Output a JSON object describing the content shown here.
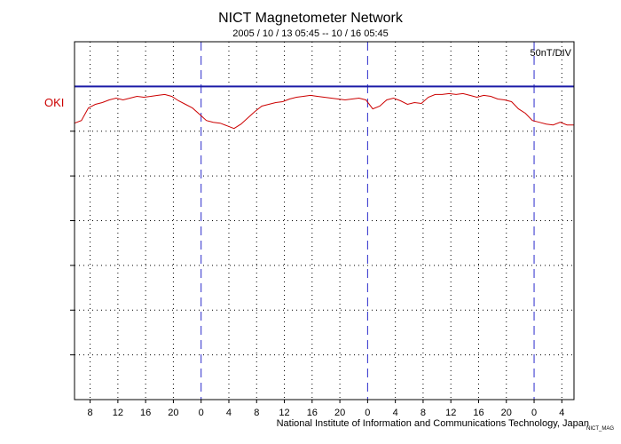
{
  "header": {
    "title": "NICT Magnetometer Network",
    "date_range": "2005 / 10 / 13   05:45 -- 10 / 16   05:45"
  },
  "scale_label": "50nT/DIV",
  "station_label": "OKI",
  "credit": "National Institute of Information and Communications Technology, Japan",
  "credit_small": "NICT_MAG",
  "colors": {
    "baseline": "#1a1aa6",
    "trace": "#cc0000",
    "day_divider": "#2a2acc",
    "grid": "#000000"
  },
  "chart_data": {
    "type": "line",
    "title": "NICT Magnetometer Network",
    "subtitle": "2005 / 10 / 13   05:45 -- 10 / 16   05:45",
    "xlabel": "",
    "ylabel": "",
    "x_unit": "hours from 2005/10/13 05:45",
    "xlim": [
      0,
      72
    ],
    "ylim": [
      -350,
      50
    ],
    "y_grid_step": 50,
    "tick_labels": [
      "8",
      "12",
      "16",
      "20",
      "0",
      "4",
      "8",
      "12",
      "16",
      "20",
      "0",
      "4",
      "8",
      "12",
      "16",
      "20",
      "0",
      "4"
    ],
    "tick_positions": [
      2.25,
      6.25,
      10.25,
      14.25,
      18.25,
      22.25,
      26.25,
      30.25,
      34.25,
      38.25,
      42.25,
      46.25,
      50.25,
      54.25,
      58.25,
      62.25,
      66.25,
      70.25
    ],
    "day_boundaries": [
      18.25,
      42.25,
      66.25
    ],
    "baseline": {
      "name": "OKI",
      "value": 0
    },
    "series": [
      {
        "name": "OKI",
        "x": [
          0,
          1,
          2,
          3,
          4,
          5,
          6,
          7,
          8,
          9,
          10,
          11,
          12,
          13,
          14,
          15,
          16,
          17,
          18,
          19,
          20,
          21,
          22,
          23,
          24,
          25,
          26,
          27,
          28,
          29,
          30,
          31,
          32,
          33,
          34,
          35,
          36,
          37,
          38,
          39,
          40,
          41,
          42,
          43,
          44,
          45,
          46,
          47,
          48,
          49,
          50,
          51,
          52,
          53,
          54,
          55,
          56,
          57,
          58,
          59,
          60,
          61,
          62,
          63,
          64,
          65,
          66,
          67,
          68,
          69,
          70,
          71,
          72
        ],
        "y": [
          -41,
          -38,
          -24,
          -20,
          -18,
          -15,
          -13,
          -15,
          -13,
          -11,
          -12,
          -11,
          -10,
          -9,
          -11,
          -16,
          -20,
          -24,
          -31,
          -38,
          -40,
          -41,
          -44,
          -47,
          -42,
          -35,
          -28,
          -22,
          -20,
          -18,
          -17,
          -14,
          -12,
          -11,
          -10,
          -11,
          -12,
          -13,
          -14,
          -15,
          -14,
          -13,
          -15,
          -25,
          -22,
          -15,
          -13,
          -16,
          -20,
          -18,
          -19,
          -12,
          -9,
          -9,
          -8,
          -9,
          -8,
          -10,
          -12,
          -10,
          -11,
          -14,
          -15,
          -17,
          -25,
          -30,
          -38,
          -40,
          -42,
          -43,
          -40,
          -43,
          -43
        ]
      }
    ]
  }
}
